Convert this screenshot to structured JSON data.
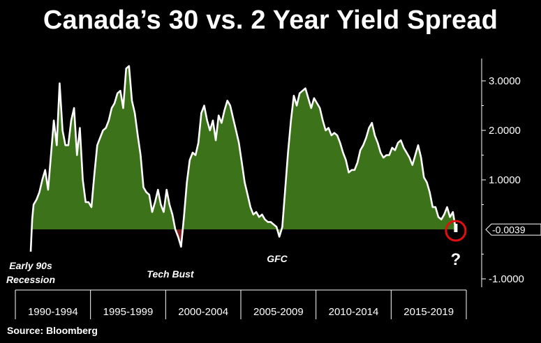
{
  "title": "Canada’s 30 vs. 2 Year Yield Spread",
  "source": "Source: Bloomberg",
  "colors": {
    "fill": "#3c7219",
    "negative_fill": "#7a1a1a",
    "line": "#ffffff",
    "circle": "#e01010",
    "background": "#000000"
  },
  "chart_data": {
    "type": "area",
    "title": "Canada’s 30 vs. 2 Year Yield Spread",
    "xlabel": "",
    "ylabel": "",
    "xlim": [
      1990.0,
      2019.55
    ],
    "ylim": [
      -1.0,
      3.5
    ],
    "y_ticks": [
      3.0,
      2.0,
      1.0,
      -1.0
    ],
    "y_tick_labels": [
      "3.0000",
      "2.0000",
      "1.0000",
      "-1.0000"
    ],
    "x_bins": [
      "1990-1994",
      "1995-1999",
      "2000-2004",
      "2005-2009",
      "2010-2014",
      "2015-2019"
    ],
    "last_value": -0.0039,
    "last_value_label": "-0.0039",
    "annotations": [
      {
        "text": "Early 90s",
        "x": 1990.0
      },
      {
        "text": "Recession",
        "x": 1990.0
      },
      {
        "text": "Tech Bust",
        "x": 2000.0
      },
      {
        "text": "GFC",
        "x": 2007.4
      },
      {
        "text": "?",
        "x": 2019.4
      }
    ],
    "series": [
      {
        "x": [
          1990.0,
          1990.1,
          1990.2,
          1990.4,
          1990.6,
          1990.8,
          1991.0,
          1991.2,
          1991.4,
          1991.6,
          1991.8,
          1992.0,
          1992.2,
          1992.4,
          1992.6,
          1992.8,
          1993.0,
          1993.2,
          1993.4,
          1993.6,
          1993.8,
          1994.0,
          1994.2,
          1994.4,
          1994.6,
          1994.8,
          1995.0,
          1995.2,
          1995.4,
          1995.6,
          1995.8,
          1996.0,
          1996.2,
          1996.4,
          1996.6,
          1996.8,
          1997.0,
          1997.2,
          1997.4,
          1997.6,
          1997.8,
          1998.0,
          1998.2,
          1998.4,
          1998.6,
          1998.8,
          1999.0,
          1999.2,
          1999.4,
          1999.6,
          1999.8,
          2000.0,
          2000.2,
          2000.4,
          2000.6,
          2000.8,
          2001.0,
          2001.2,
          2001.4,
          2001.6,
          2001.8,
          2002.0,
          2002.2,
          2002.4,
          2002.6,
          2002.8,
          2003.0,
          2003.2,
          2003.4,
          2003.6,
          2003.8,
          2004.0,
          2004.2,
          2004.4,
          2004.6,
          2004.8,
          2005.0,
          2005.2,
          2005.4,
          2005.6,
          2005.8,
          2006.0,
          2006.2,
          2006.4,
          2006.6,
          2006.8,
          2007.0,
          2007.2,
          2007.4,
          2007.6,
          2007.8,
          2008.0,
          2008.2,
          2008.4,
          2008.6,
          2008.8,
          2009.0,
          2009.2,
          2009.4,
          2009.6,
          2009.8,
          2010.0,
          2010.2,
          2010.4,
          2010.6,
          2010.8,
          2011.0,
          2011.2,
          2011.4,
          2011.6,
          2011.8,
          2012.0,
          2012.2,
          2012.4,
          2012.6,
          2012.8,
          2013.0,
          2013.2,
          2013.4,
          2013.6,
          2013.8,
          2014.0,
          2014.2,
          2014.4,
          2014.6,
          2014.8,
          2015.0,
          2015.2,
          2015.4,
          2015.6,
          2015.8,
          2016.0,
          2016.2,
          2016.4,
          2016.6,
          2016.8,
          2017.0,
          2017.2,
          2017.4,
          2017.6,
          2017.8,
          2018.0,
          2018.2,
          2018.4,
          2018.6,
          2018.8,
          2019.0,
          2019.2,
          2019.4
        ],
        "values": [
          -0.45,
          0.2,
          0.5,
          0.6,
          0.75,
          1.0,
          1.2,
          0.8,
          1.5,
          2.2,
          1.7,
          2.95,
          2.0,
          1.7,
          1.7,
          2.2,
          2.45,
          1.5,
          2.05,
          1.0,
          0.55,
          0.55,
          0.45,
          1.1,
          1.7,
          1.85,
          2.0,
          2.05,
          2.2,
          2.45,
          2.55,
          2.75,
          2.8,
          2.45,
          3.25,
          3.3,
          2.6,
          2.35,
          1.9,
          1.5,
          0.85,
          0.75,
          0.7,
          0.35,
          0.55,
          0.8,
          0.5,
          0.35,
          0.8,
          0.5,
          0.3,
          0.0,
          -0.15,
          -0.35,
          0.25,
          0.95,
          1.4,
          1.55,
          1.5,
          1.75,
          2.35,
          2.5,
          2.2,
          2.0,
          2.2,
          1.8,
          2.3,
          2.15,
          2.4,
          2.6,
          2.5,
          2.25,
          2.0,
          1.75,
          1.35,
          0.95,
          0.7,
          0.45,
          0.3,
          0.35,
          0.25,
          0.3,
          0.2,
          0.15,
          0.15,
          0.1,
          0.05,
          -0.15,
          0.05,
          0.8,
          1.55,
          2.2,
          2.7,
          2.5,
          2.75,
          2.8,
          2.85,
          2.65,
          2.45,
          2.65,
          2.55,
          2.45,
          2.2,
          2.0,
          2.05,
          1.9,
          1.95,
          1.9,
          1.75,
          1.55,
          1.4,
          1.15,
          1.2,
          1.2,
          1.35,
          1.6,
          1.7,
          1.85,
          2.05,
          2.15,
          1.9,
          1.75,
          1.55,
          1.45,
          1.5,
          1.5,
          1.65,
          1.6,
          1.75,
          1.8,
          1.65,
          1.55,
          1.45,
          1.3,
          1.5,
          1.7,
          1.45,
          1.05,
          0.95,
          0.75,
          0.45,
          0.45,
          0.25,
          0.2,
          0.3,
          0.45,
          0.25,
          0.35,
          -0.0039
        ]
      }
    ]
  }
}
